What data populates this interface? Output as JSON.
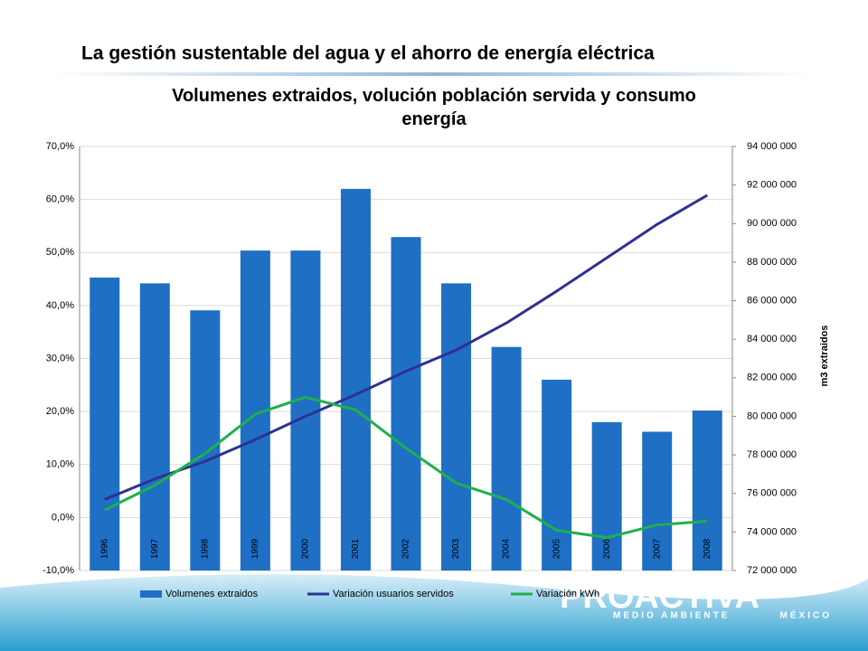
{
  "header": {
    "title": "La gestión sustentable del agua y el ahorro de energía eléctrica"
  },
  "branding": {
    "name": "PROACTIVA",
    "tagline": "MEDIO AMBIENTE",
    "country": "MÉXICO"
  },
  "chart_data": {
    "type": "bar-line",
    "title": "Volumenes extraidos, volución población servida y consumo energía",
    "y2label": "m3 extraidos",
    "categories": [
      "1996",
      "1997",
      "1998",
      "1999",
      "2000",
      "2001",
      "2002",
      "2003",
      "2004",
      "2005",
      "2006",
      "2007",
      "2008"
    ],
    "series": [
      {
        "name": "Volumenes extraidos",
        "type": "bar",
        "axis": "y2",
        "color": "#1f6fc5",
        "values": [
          87200000,
          86900000,
          85500000,
          88600000,
          88600000,
          91800000,
          89300000,
          86900000,
          83600000,
          81900000,
          79700000,
          79200000,
          80300000
        ]
      },
      {
        "name": "Variación usuarios servidos",
        "type": "line",
        "color": "#2e3192",
        "values": [
          3.4,
          7.3,
          10.6,
          14.7,
          19.1,
          23.2,
          27.6,
          31.6,
          36.7,
          42.7,
          49.0,
          55.3,
          60.8
        ]
      },
      {
        "name": "Variación kWh",
        "type": "line",
        "color": "#1db14b",
        "values": [
          1.4,
          6.1,
          12.1,
          19.5,
          22.7,
          20.3,
          13.1,
          6.5,
          3.4,
          -2.4,
          -3.8,
          -1.4,
          -0.7
        ]
      }
    ],
    "ylim": [
      -10,
      70
    ],
    "yticks": [
      {
        "value": -10,
        "label": "-10,0%"
      },
      {
        "value": 0,
        "label": "0,0%"
      },
      {
        "value": 10,
        "label": "10,0%"
      },
      {
        "value": 20,
        "label": "20,0%"
      },
      {
        "value": 30,
        "label": "30,0%"
      },
      {
        "value": 40,
        "label": "40,0%"
      },
      {
        "value": 50,
        "label": "50,0%"
      },
      {
        "value": 60,
        "label": "60,0%"
      },
      {
        "value": 70,
        "label": "70,0%"
      }
    ],
    "y2lim": [
      72000000,
      94000000
    ],
    "y2ticks": [
      {
        "value": 72000000,
        "label": "72 000 000"
      },
      {
        "value": 74000000,
        "label": "74 000 000"
      },
      {
        "value": 76000000,
        "label": "76 000 000"
      },
      {
        "value": 78000000,
        "label": "78 000 000"
      },
      {
        "value": 80000000,
        "label": "80 000 000"
      },
      {
        "value": 82000000,
        "label": "82 000 000"
      },
      {
        "value": 84000000,
        "label": "84 000 000"
      },
      {
        "value": 86000000,
        "label": "86 000 000"
      },
      {
        "value": 88000000,
        "label": "88 000 000"
      },
      {
        "value": 90000000,
        "label": "90 000 000"
      },
      {
        "value": 92000000,
        "label": "92 000 000"
      },
      {
        "value": 94000000,
        "label": "94 000 000"
      }
    ],
    "grid": true,
    "legend": "bottom"
  }
}
